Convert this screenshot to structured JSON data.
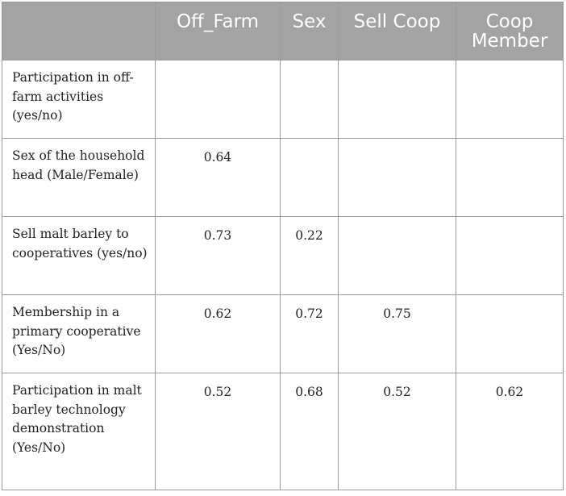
{
  "table": {
    "headers": [
      "",
      "Off_Farm",
      "Sex",
      "Sell Coop",
      "Coop Member"
    ],
    "rows": [
      {
        "label": "Participation in off-farm activities (yes/no)",
        "values": [
          "",
          "",
          "",
          ""
        ]
      },
      {
        "label": "Sex of the household head (Male/Female)",
        "values": [
          "0.64",
          "",
          "",
          ""
        ]
      },
      {
        "label": "Sell malt barley to cooperatives (yes/no)",
        "values": [
          "0.73",
          "0.22",
          "",
          ""
        ]
      },
      {
        "label": "Membership in a primary cooperative (Yes/No)",
        "values": [
          "0.62",
          "0.72",
          "0.75",
          ""
        ]
      },
      {
        "label": "Participation in malt barley technology demonstration (Yes/No)",
        "values": [
          "0.52",
          "0.68",
          "0.52",
          "0.62"
        ]
      }
    ]
  }
}
